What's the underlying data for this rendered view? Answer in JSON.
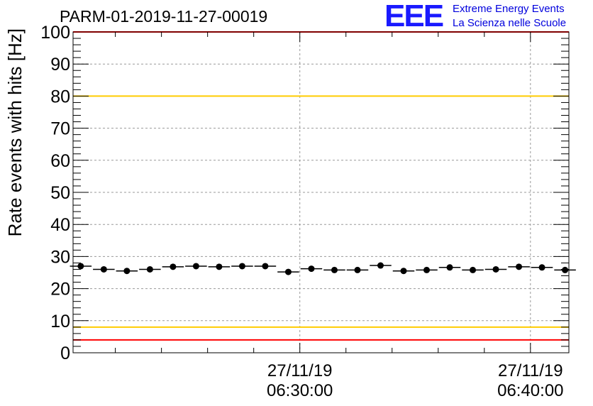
{
  "chart_data": {
    "type": "scatter",
    "title": "PARM-01-2019-11-27-00019",
    "ylabel": "Rate events with hits [Hz]",
    "xlabel": "",
    "ylim": [
      0,
      100
    ],
    "yticks": [
      0,
      10,
      20,
      30,
      40,
      50,
      60,
      70,
      80,
      90,
      100
    ],
    "xlim": [
      "06:20:10",
      "06:41:40"
    ],
    "xticks": [
      {
        "date": "27/11/19",
        "time": "06:30:00",
        "t": "06:30:00"
      },
      {
        "date": "27/11/19",
        "time": "06:40:00",
        "t": "06:40:00"
      }
    ],
    "grid": true,
    "reference_lines": [
      {
        "y": 100,
        "color": "#ff0000"
      },
      {
        "y": 80,
        "color": "#ffcc00"
      },
      {
        "y": 8,
        "color": "#ffcc00"
      },
      {
        "y": 4,
        "color": "#ff0000"
      }
    ],
    "bin_width_s": 60,
    "series": [
      {
        "x": [
          "06:20:30",
          "06:21:30",
          "06:22:30",
          "06:23:30",
          "06:24:30",
          "06:25:30",
          "06:26:30",
          "06:27:30",
          "06:28:30",
          "06:29:30",
          "06:30:30",
          "06:31:30",
          "06:32:30",
          "06:33:30",
          "06:34:30",
          "06:35:30",
          "06:36:30",
          "06:37:30",
          "06:38:30",
          "06:39:30",
          "06:40:30",
          "06:41:30"
        ],
        "y": [
          27.0,
          26.0,
          25.5,
          26.0,
          26.8,
          27.0,
          26.8,
          27.0,
          27.0,
          25.2,
          26.2,
          25.8,
          25.8,
          27.2,
          25.5,
          25.8,
          26.6,
          25.8,
          26.0,
          26.8,
          26.6,
          25.8
        ]
      }
    ],
    "colors": {
      "markers": "#000000",
      "grid": "#999999"
    }
  },
  "logo": {
    "mark": "EEE",
    "line1": "Extreme Energy Events",
    "line2": "La Scienza nelle Scuole"
  }
}
